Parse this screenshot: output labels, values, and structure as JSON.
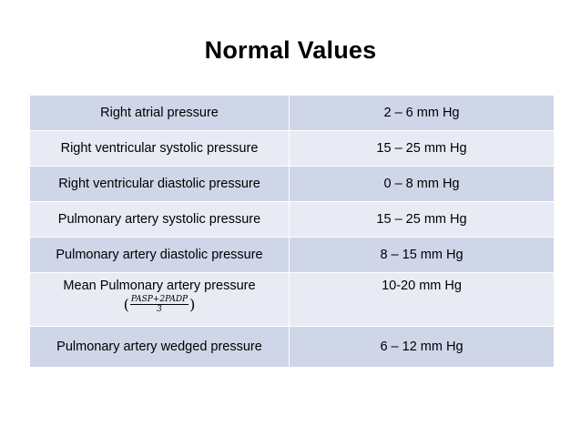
{
  "title": "Normal Values",
  "rows": [
    {
      "label": "Right atrial pressure",
      "value": "2 – 6 mm Hg"
    },
    {
      "label": "Right ventricular systolic pressure",
      "value": "15 – 25  mm Hg"
    },
    {
      "label": "Right ventricular diastolic pressure",
      "value": "0 – 8 mm Hg"
    },
    {
      "label": "Pulmonary artery systolic pressure",
      "value": "15 – 25 mm Hg"
    },
    {
      "label": "Pulmonary artery diastolic pressure",
      "value": "8 – 15 mm Hg"
    },
    {
      "label": "Mean Pulmonary artery pressure",
      "value": "10-20 mm Hg",
      "formula": {
        "open": "(",
        "numerator": "PASP+2PADP",
        "denominator": "3",
        "close": ")"
      }
    },
    {
      "label": "Pulmonary artery wedged pressure",
      "value": "6 – 12 mm Hg"
    }
  ],
  "colors": {
    "row_dark": "#cfd6e8",
    "row_light": "#e8ebf4"
  }
}
